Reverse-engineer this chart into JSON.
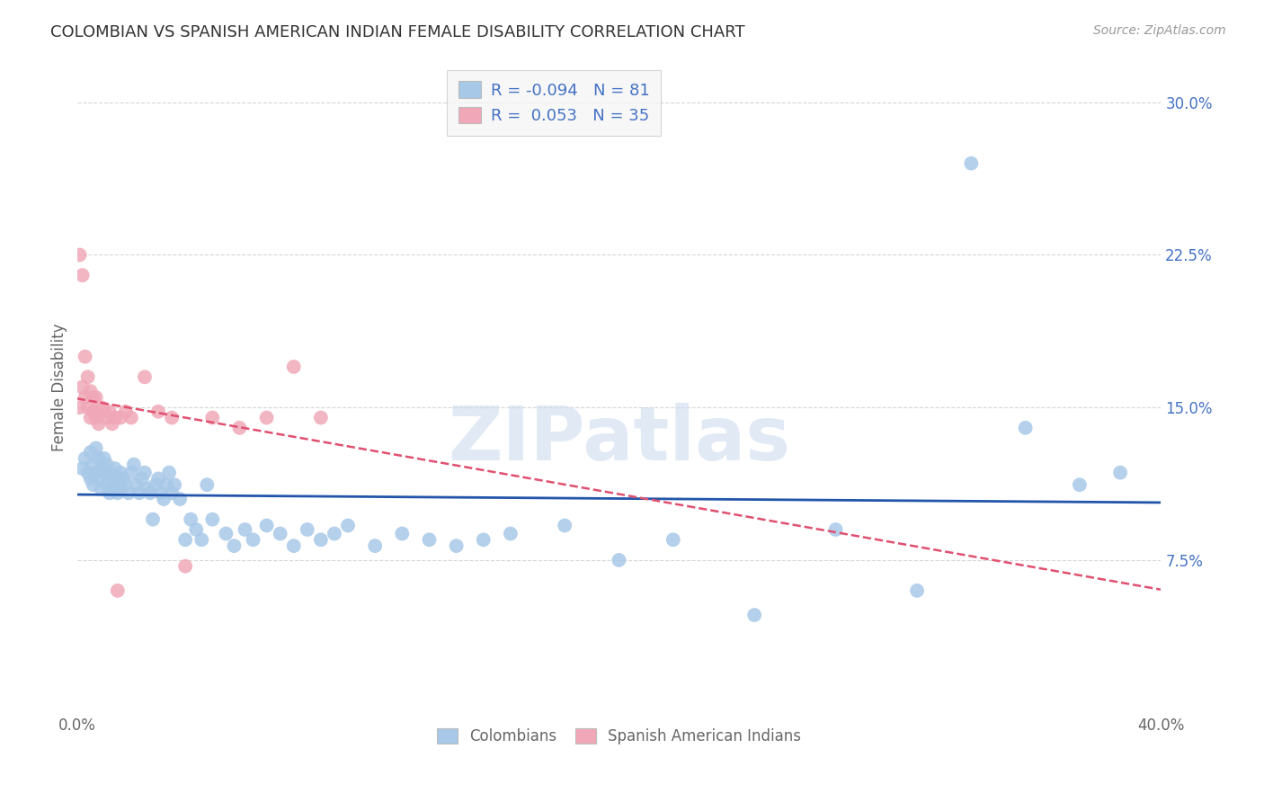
{
  "title": "COLOMBIAN VS SPANISH AMERICAN INDIAN FEMALE DISABILITY CORRELATION CHART",
  "source": "Source: ZipAtlas.com",
  "ylabel": "Female Disability",
  "xlim": [
    0.0,
    0.4
  ],
  "ylim": [
    0.0,
    0.32
  ],
  "yticks": [
    0.075,
    0.15,
    0.225,
    0.3
  ],
  "ytick_labels": [
    "7.5%",
    "15.0%",
    "22.5%",
    "30.0%"
  ],
  "xticks": [
    0.0,
    0.1,
    0.2,
    0.3,
    0.4
  ],
  "xtick_labels": [
    "0.0%",
    "",
    "",
    "",
    "40.0%"
  ],
  "colombians_color": "#a8c8e8",
  "spanish_color": "#f0a8b8",
  "line_colombians_color": "#2255aa",
  "line_spanish_color": "#e05070",
  "R_colombians": -0.094,
  "N_colombians": 81,
  "R_spanish": 0.053,
  "N_spanish": 35,
  "background_color": "#ffffff",
  "watermark": "ZIPatlas",
  "tick_color": "#4472c4",
  "label_color": "#666666",
  "grid_color": "#cccccc",
  "colombians_x": [
    0.002,
    0.003,
    0.004,
    0.005,
    0.005,
    0.006,
    0.006,
    0.007,
    0.007,
    0.008,
    0.008,
    0.009,
    0.009,
    0.01,
    0.01,
    0.011,
    0.011,
    0.012,
    0.012,
    0.013,
    0.013,
    0.014,
    0.014,
    0.015,
    0.015,
    0.016,
    0.016,
    0.017,
    0.018,
    0.019,
    0.02,
    0.021,
    0.022,
    0.023,
    0.024,
    0.025,
    0.026,
    0.027,
    0.028,
    0.029,
    0.03,
    0.031,
    0.032,
    0.033,
    0.034,
    0.035,
    0.036,
    0.038,
    0.04,
    0.042,
    0.044,
    0.046,
    0.048,
    0.05,
    0.055,
    0.058,
    0.062,
    0.065,
    0.07,
    0.075,
    0.08,
    0.085,
    0.09,
    0.095,
    0.1,
    0.11,
    0.12,
    0.13,
    0.14,
    0.15,
    0.16,
    0.18,
    0.2,
    0.22,
    0.25,
    0.28,
    0.31,
    0.33,
    0.35,
    0.37,
    0.385
  ],
  "colombians_y": [
    0.12,
    0.125,
    0.118,
    0.128,
    0.115,
    0.122,
    0.112,
    0.118,
    0.13,
    0.125,
    0.115,
    0.12,
    0.11,
    0.125,
    0.118,
    0.122,
    0.112,
    0.118,
    0.108,
    0.115,
    0.11,
    0.12,
    0.112,
    0.115,
    0.108,
    0.118,
    0.11,
    0.115,
    0.112,
    0.108,
    0.118,
    0.122,
    0.112,
    0.108,
    0.115,
    0.118,
    0.11,
    0.108,
    0.095,
    0.112,
    0.115,
    0.108,
    0.105,
    0.112,
    0.118,
    0.108,
    0.112,
    0.105,
    0.085,
    0.095,
    0.09,
    0.085,
    0.112,
    0.095,
    0.088,
    0.082,
    0.09,
    0.085,
    0.092,
    0.088,
    0.082,
    0.09,
    0.085,
    0.088,
    0.092,
    0.082,
    0.088,
    0.085,
    0.082,
    0.085,
    0.088,
    0.092,
    0.075,
    0.085,
    0.048,
    0.09,
    0.06,
    0.27,
    0.14,
    0.112,
    0.118
  ],
  "spanish_x": [
    0.001,
    0.001,
    0.002,
    0.002,
    0.003,
    0.003,
    0.004,
    0.004,
    0.005,
    0.005,
    0.006,
    0.006,
    0.007,
    0.007,
    0.008,
    0.008,
    0.009,
    0.01,
    0.011,
    0.012,
    0.013,
    0.014,
    0.015,
    0.016,
    0.018,
    0.02,
    0.025,
    0.03,
    0.035,
    0.04,
    0.05,
    0.06,
    0.07,
    0.08,
    0.09
  ],
  "spanish_y": [
    0.15,
    0.225,
    0.16,
    0.215,
    0.155,
    0.175,
    0.15,
    0.165,
    0.158,
    0.145,
    0.155,
    0.148,
    0.145,
    0.155,
    0.148,
    0.142,
    0.15,
    0.148,
    0.145,
    0.148,
    0.142,
    0.145,
    0.06,
    0.145,
    0.148,
    0.145,
    0.165,
    0.148,
    0.145,
    0.072,
    0.145,
    0.14,
    0.145,
    0.17,
    0.145
  ],
  "legend1_label": "R = -0.094   N = 81",
  "legend2_label": "R =  0.053   N = 35",
  "legend_bottom1": "Colombians",
  "legend_bottom2": "Spanish American Indians"
}
